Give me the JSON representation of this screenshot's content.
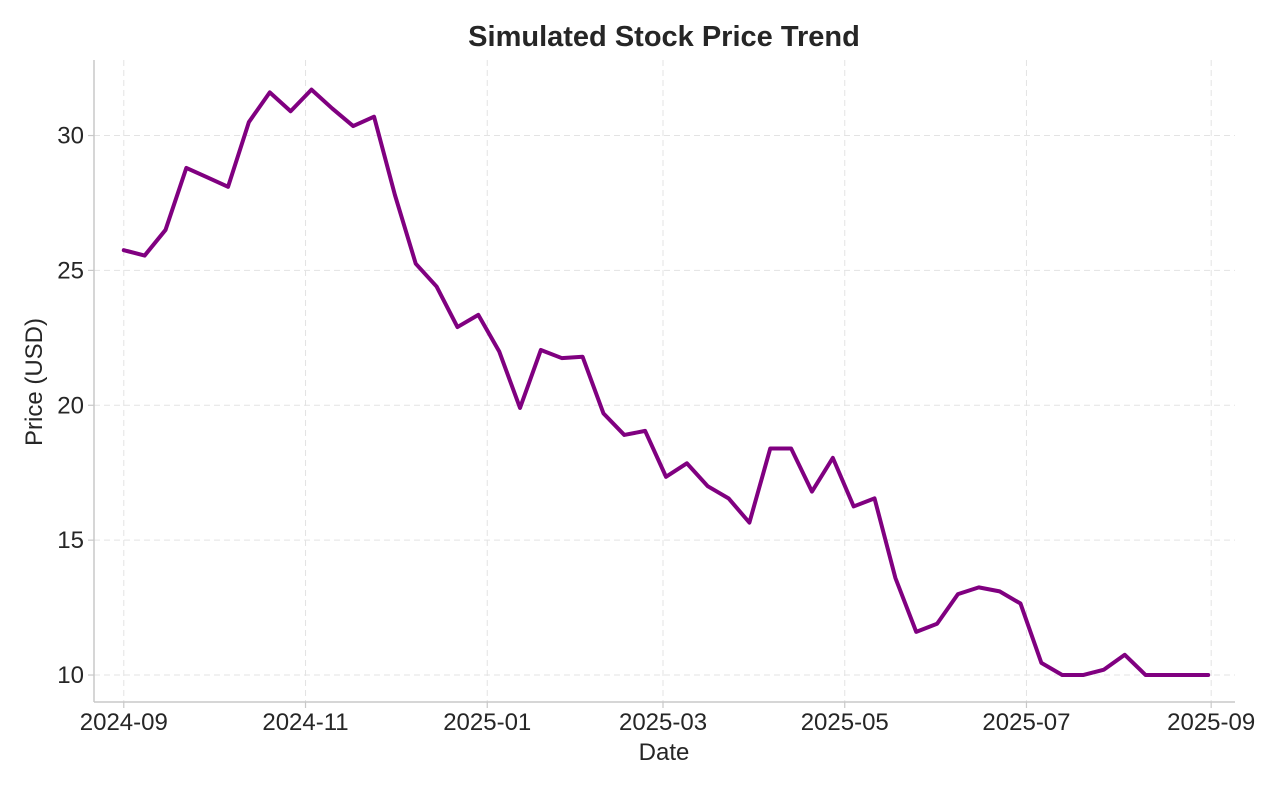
{
  "chart_data": {
    "type": "line",
    "title": "Simulated Stock Price Trend",
    "xlabel": "Date",
    "ylabel": "Price (USD)",
    "xlim": [
      "2024-08-22",
      "2025-09-09"
    ],
    "ylim": [
      9,
      32.8
    ],
    "grid": true,
    "x_ticks": [
      "2024-09-01",
      "2024-11-01",
      "2025-01-01",
      "2025-03-01",
      "2025-05-01",
      "2025-07-01",
      "2025-09-01"
    ],
    "x_tick_labels": [
      "2024-09",
      "2024-11",
      "2025-01",
      "2025-03",
      "2025-05",
      "2025-07",
      "2025-09"
    ],
    "y_ticks": [
      10,
      15,
      20,
      25,
      30
    ],
    "y_tick_labels": [
      "10",
      "15",
      "20",
      "25",
      "30"
    ],
    "series": [
      {
        "color": "#800080",
        "x": [
          "2024-09-01",
          "2024-09-08",
          "2024-09-15",
          "2024-09-22",
          "2024-09-29",
          "2024-10-06",
          "2024-10-13",
          "2024-10-20",
          "2024-10-27",
          "2024-11-03",
          "2024-11-10",
          "2024-11-17",
          "2024-11-24",
          "2024-12-01",
          "2024-12-08",
          "2024-12-15",
          "2024-12-22",
          "2024-12-29",
          "2025-01-05",
          "2025-01-12",
          "2025-01-19",
          "2025-01-26",
          "2025-02-02",
          "2025-02-09",
          "2025-02-16",
          "2025-02-23",
          "2025-03-02",
          "2025-03-09",
          "2025-03-16",
          "2025-03-23",
          "2025-03-30",
          "2025-04-06",
          "2025-04-13",
          "2025-04-20",
          "2025-04-27",
          "2025-05-04",
          "2025-05-11",
          "2025-05-18",
          "2025-05-25",
          "2025-06-01",
          "2025-06-08",
          "2025-06-15",
          "2025-06-22",
          "2025-06-29",
          "2025-07-06",
          "2025-07-13",
          "2025-07-20",
          "2025-07-27",
          "2025-08-03",
          "2025-08-10",
          "2025-08-17",
          "2025-08-24",
          "2025-08-31"
        ],
        "values": [
          25.75,
          25.55,
          26.5,
          28.8,
          28.45,
          28.1,
          30.5,
          31.6,
          30.9,
          31.7,
          31.0,
          30.35,
          30.7,
          27.8,
          25.25,
          24.4,
          22.9,
          23.35,
          22.0,
          19.9,
          22.05,
          21.75,
          21.8,
          19.7,
          18.9,
          19.05,
          17.35,
          17.85,
          17.0,
          16.55,
          15.65,
          18.4,
          18.4,
          16.8,
          18.05,
          16.25,
          16.55,
          13.6,
          11.6,
          11.9,
          13.0,
          13.25,
          13.1,
          12.65,
          10.45,
          10.0,
          10.0,
          10.2,
          10.75,
          10.0,
          10.0,
          10.0,
          10.0
        ]
      }
    ]
  }
}
